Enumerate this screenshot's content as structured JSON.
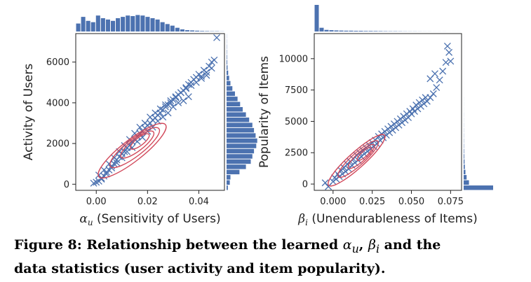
{
  "colors": {
    "scatter": "#4c72b0",
    "hist": "#4c72b0",
    "contour": "#d1485a",
    "axis": "#222222"
  },
  "chart_data": [
    {
      "type": "scatter",
      "title": "",
      "xlabel_var": "α",
      "xlabel_sub": "u",
      "xlabel_text": " (Sensitivity of Users)",
      "ylabel": "Activity of Users",
      "xlim": [
        -0.008,
        0.05
      ],
      "ylim": [
        -300,
        7400
      ],
      "xticks": [
        0.0,
        0.02,
        0.04
      ],
      "xtick_labels": [
        "0.00",
        "0.02",
        "0.04"
      ],
      "yticks": [
        0,
        2000,
        4000,
        6000
      ],
      "ytick_labels": [
        "0",
        "2000",
        "4000",
        "6000"
      ],
      "marker": "x",
      "series": [
        {
          "x": [
            0.001,
            0.002,
            0.003,
            0.004,
            0.005,
            0.006,
            0.007,
            0.008,
            0.009,
            0.01,
            0.011,
            0.012,
            0.013,
            0.014,
            0.015,
            0.016,
            0.017,
            0.018,
            0.019,
            0.02,
            0.021,
            0.022,
            0.023,
            0.024,
            0.025,
            0.026,
            0.027,
            0.028,
            0.029,
            0.03,
            0.031,
            0.032,
            0.033,
            0.034,
            0.035,
            0.036,
            0.037,
            0.038,
            0.039,
            0.04,
            0.042,
            0.044,
            0.046,
            0.047,
            0.045,
            0.043,
            0.041,
            0.036,
            0.034,
            0.032,
            0.03,
            0.028,
            0.026,
            0.024,
            0.022,
            0.02,
            0.018,
            0.016,
            0.014,
            0.012,
            0.01,
            0.008,
            0.006,
            0.004,
            0.002,
            0.0,
            -0.001,
            0.001,
            0.003,
            0.005,
            0.007,
            0.009,
            0.011,
            0.013,
            0.015,
            0.017,
            0.019,
            0.021,
            0.023,
            0.025,
            0.027,
            0.029,
            0.031,
            0.033,
            0.035,
            0.037,
            0.039,
            0.041,
            0.043,
            0.045
          ],
          "y": [
            150,
            300,
            400,
            600,
            700,
            900,
            1000,
            1200,
            1350,
            1500,
            1600,
            1800,
            1900,
            2100,
            2200,
            2350,
            2500,
            2600,
            2750,
            2900,
            3000,
            3150,
            3250,
            3400,
            3500,
            3650,
            3800,
            3900,
            4000,
            4150,
            4250,
            4400,
            4500,
            4600,
            4750,
            4900,
            5000,
            5150,
            5250,
            5400,
            5600,
            5800,
            6100,
            7200,
            6000,
            5500,
            5300,
            4300,
            4100,
            4000,
            3800,
            3500,
            3300,
            3100,
            2800,
            2600,
            2300,
            2100,
            1800,
            1600,
            1300,
            1050,
            800,
            500,
            250,
            100,
            50,
            450,
            700,
            1000,
            1300,
            1600,
            1900,
            2200,
            2500,
            2800,
            3000,
            3300,
            3500,
            3700,
            3900,
            4100,
            4300,
            4500,
            4700,
            4850,
            5000,
            5200,
            5350,
            5700
          ]
        }
      ],
      "contours": [
        {
          "cx": 0.017,
          "cy": 2100,
          "rx": 0.0045,
          "ry": 350,
          "angle": 38
        },
        {
          "cx": 0.016,
          "cy": 1950,
          "rx": 0.008,
          "ry": 550,
          "angle": 38
        },
        {
          "cx": 0.015,
          "cy": 1800,
          "rx": 0.012,
          "ry": 750,
          "angle": 38
        },
        {
          "cx": 0.014,
          "cy": 1650,
          "rx": 0.0165,
          "ry": 950,
          "angle": 38
        }
      ],
      "hist_x": [
        0.3,
        0.55,
        0.4,
        0.35,
        0.6,
        0.5,
        0.45,
        0.4,
        0.5,
        0.55,
        0.6,
        0.58,
        0.62,
        0.6,
        0.55,
        0.5,
        0.45,
        0.35,
        0.28,
        0.22,
        0.14,
        0.08,
        0.05,
        0.04,
        0.03,
        0.02,
        0.015,
        0.01,
        0.01,
        0.005
      ],
      "hist_y": [
        0.04,
        0.1,
        0.12,
        0.4,
        0.6,
        0.75,
        0.8,
        0.85,
        0.92,
        0.95,
        0.9,
        0.85,
        0.8,
        0.7,
        0.6,
        0.5,
        0.42,
        0.34,
        0.26,
        0.18,
        0.12,
        0.08,
        0.05,
        0.03,
        0.02,
        0.015,
        0.01,
        0.008,
        0.005,
        0.004
      ]
    },
    {
      "type": "scatter",
      "title": "",
      "xlabel_var": "β",
      "xlabel_sub": "i",
      "xlabel_text": " (Unendurableness of Items)",
      "ylabel": "Popularity of Items",
      "xlim": [
        -0.012,
        0.082
      ],
      "ylim": [
        -500,
        12000
      ],
      "xticks": [
        0.0,
        0.025,
        0.05,
        0.075
      ],
      "xtick_labels": [
        "0.000",
        "0.025",
        "0.050",
        "0.075"
      ],
      "yticks": [
        0,
        2500,
        5000,
        7500,
        10000
      ],
      "ytick_labels": [
        "0",
        "2500",
        "5000",
        "7500",
        "10000"
      ],
      "marker": "x",
      "series": [
        {
          "x": [
            0.0,
            0.002,
            0.004,
            0.006,
            0.008,
            0.01,
            0.012,
            0.014,
            0.016,
            0.018,
            0.02,
            0.022,
            0.024,
            0.026,
            0.028,
            0.03,
            0.032,
            0.034,
            0.036,
            0.038,
            0.04,
            0.042,
            0.044,
            0.046,
            0.048,
            0.05,
            0.052,
            0.054,
            0.056,
            0.058,
            0.06,
            0.062,
            0.064,
            0.066,
            0.068,
            0.07,
            0.072,
            0.073,
            0.074,
            0.075,
            0.065,
            0.062,
            -0.003,
            -0.005,
            0.001,
            0.003,
            0.005,
            0.007,
            0.009,
            0.011,
            0.013,
            0.015,
            0.017,
            0.019,
            0.021,
            0.023,
            0.025,
            0.027,
            0.029,
            0.031,
            0.033,
            0.035,
            0.037,
            0.039,
            0.041,
            0.043,
            0.045,
            0.047,
            0.049,
            0.051,
            0.053,
            0.055,
            0.057,
            0.059
          ],
          "y": [
            200,
            400,
            600,
            800,
            1000,
            1200,
            1500,
            1700,
            1900,
            2200,
            2400,
            2600,
            2800,
            3000,
            3200,
            3500,
            3700,
            3900,
            4100,
            4300,
            4500,
            4700,
            4900,
            5100,
            5300,
            5600,
            5800,
            6000,
            6200,
            6400,
            6600,
            6900,
            7200,
            7700,
            8300,
            9000,
            9700,
            11000,
            10500,
            9800,
            8800,
            8400,
            -200,
            100,
            500,
            800,
            1100,
            1300,
            1600,
            1800,
            2000,
            2300,
            2500,
            2700,
            2900,
            3100,
            3300,
            3500,
            3800,
            4000,
            4200,
            4400,
            4600,
            4800,
            5000,
            5200,
            5400,
            5600,
            5800,
            6000,
            6300,
            6500,
            6700,
            6900
          ]
        }
      ],
      "contours": [
        {
          "cx": 0.02,
          "cy": 2400,
          "rx": 0.006,
          "ry": 400,
          "angle": 42
        },
        {
          "cx": 0.018,
          "cy": 2200,
          "rx": 0.011,
          "ry": 650,
          "angle": 42
        },
        {
          "cx": 0.016,
          "cy": 2000,
          "rx": 0.017,
          "ry": 900,
          "angle": 42
        },
        {
          "cx": 0.015,
          "cy": 1900,
          "rx": 0.024,
          "ry": 1150,
          "angle": 42
        }
      ],
      "hist_x": [
        1.0,
        0.14,
        0.06,
        0.05,
        0.04,
        0.035,
        0.03,
        0.03,
        0.025,
        0.025,
        0.02,
        0.02,
        0.018,
        0.015,
        0.012,
        0.01,
        0.01,
        0.008,
        0.006,
        0.005,
        0.005,
        0.004,
        0.003,
        0.003,
        0.002,
        0.002,
        0.002,
        0.001,
        0.001,
        0.001
      ],
      "hist_y": [
        1.0,
        0.18,
        0.1,
        0.06,
        0.04,
        0.03,
        0.02,
        0.015,
        0.01,
        0.008,
        0.006,
        0.005,
        0.004,
        0.003,
        0.003,
        0.002,
        0.002,
        0.002,
        0.001,
        0.001,
        0.001,
        0.001,
        0.001,
        0.001,
        0.001,
        0.001,
        0.001,
        0.001,
        0.001,
        0.001
      ]
    }
  ],
  "caption": {
    "prefix": "Figure 8: Relationship between the learned ",
    "var1": "α",
    "sub1": "u",
    "sep": ", ",
    "var2": "β",
    "sub2": "i",
    "suffix": " and the",
    "line2": "data statistics (user activity and item popularity)."
  }
}
